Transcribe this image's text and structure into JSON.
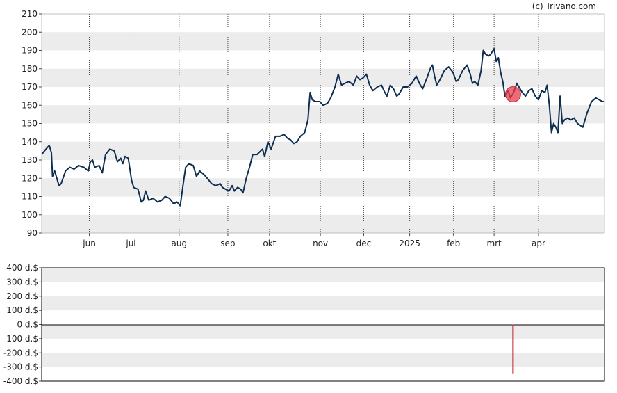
{
  "credit": "(c) Trivano.com",
  "colors": {
    "line": "#0d2e4f",
    "band": "#ececec",
    "marker": "#e8394a",
    "bar": "#c4242f"
  },
  "chart_data": [
    {
      "type": "line",
      "name": "price",
      "ylim": [
        90,
        210
      ],
      "y_ticks": [
        90,
        100,
        110,
        120,
        130,
        140,
        150,
        160,
        170,
        180,
        190,
        200,
        210
      ],
      "x_ticks": [
        {
          "label": "jun",
          "t": 0.088
        },
        {
          "label": "jul",
          "t": 0.165
        },
        {
          "label": "aug",
          "t": 0.254
        },
        {
          "label": "sep",
          "t": 0.344
        },
        {
          "label": "okt",
          "t": 0.421
        },
        {
          "label": "nov",
          "t": 0.515
        },
        {
          "label": "dec",
          "t": 0.595
        },
        {
          "label": "2025",
          "t": 0.68
        },
        {
          "label": "feb",
          "t": 0.761
        },
        {
          "label": "mrt",
          "t": 0.836
        },
        {
          "label": "apr",
          "t": 0.918
        }
      ],
      "grid": "horizontal bands, dotted vertical lines at month ticks",
      "series": [
        {
          "values": [
            [
              0.0,
              133
            ],
            [
              0.008,
              136
            ],
            [
              0.014,
              138
            ],
            [
              0.018,
              134
            ],
            [
              0.02,
              121
            ],
            [
              0.024,
              124
            ],
            [
              0.032,
              116
            ],
            [
              0.036,
              117
            ],
            [
              0.044,
              124
            ],
            [
              0.052,
              126
            ],
            [
              0.06,
              125
            ],
            [
              0.068,
              127
            ],
            [
              0.078,
              126
            ],
            [
              0.086,
              124
            ],
            [
              0.09,
              129
            ],
            [
              0.094,
              130
            ],
            [
              0.098,
              126
            ],
            [
              0.106,
              127
            ],
            [
              0.112,
              123
            ],
            [
              0.118,
              133
            ],
            [
              0.126,
              136
            ],
            [
              0.134,
              135
            ],
            [
              0.14,
              129
            ],
            [
              0.146,
              131
            ],
            [
              0.15,
              128
            ],
            [
              0.154,
              132
            ],
            [
              0.16,
              131
            ],
            [
              0.166,
              119
            ],
            [
              0.17,
              115
            ],
            [
              0.178,
              114
            ],
            [
              0.184,
              107
            ],
            [
              0.188,
              108
            ],
            [
              0.192,
              113
            ],
            [
              0.198,
              108
            ],
            [
              0.206,
              109
            ],
            [
              0.214,
              107
            ],
            [
              0.222,
              108
            ],
            [
              0.228,
              110
            ],
            [
              0.236,
              109
            ],
            [
              0.244,
              106
            ],
            [
              0.25,
              107
            ],
            [
              0.256,
              105
            ],
            [
              0.262,
              118
            ],
            [
              0.266,
              126
            ],
            [
              0.272,
              128
            ],
            [
              0.28,
              127
            ],
            [
              0.286,
              121
            ],
            [
              0.292,
              124
            ],
            [
              0.3,
              122
            ],
            [
              0.306,
              120
            ],
            [
              0.314,
              117
            ],
            [
              0.322,
              116
            ],
            [
              0.33,
              117
            ],
            [
              0.334,
              115
            ],
            [
              0.34,
              114
            ],
            [
              0.346,
              113
            ],
            [
              0.352,
              116
            ],
            [
              0.356,
              113
            ],
            [
              0.362,
              115
            ],
            [
              0.368,
              114
            ],
            [
              0.372,
              112
            ],
            [
              0.378,
              120
            ],
            [
              0.384,
              126
            ],
            [
              0.39,
              133
            ],
            [
              0.398,
              133
            ],
            [
              0.408,
              136
            ],
            [
              0.412,
              132
            ],
            [
              0.418,
              140
            ],
            [
              0.424,
              136
            ],
            [
              0.432,
              143
            ],
            [
              0.44,
              143
            ],
            [
              0.448,
              144
            ],
            [
              0.454,
              142
            ],
            [
              0.46,
              141
            ],
            [
              0.466,
              139
            ],
            [
              0.472,
              140
            ],
            [
              0.478,
              143
            ],
            [
              0.486,
              145
            ],
            [
              0.492,
              152
            ],
            [
              0.496,
              167
            ],
            [
              0.5,
              163
            ],
            [
              0.506,
              162
            ],
            [
              0.514,
              162
            ],
            [
              0.52,
              160
            ],
            [
              0.528,
              161
            ],
            [
              0.534,
              164
            ],
            [
              0.542,
              170
            ],
            [
              0.548,
              177
            ],
            [
              0.554,
              171
            ],
            [
              0.56,
              172
            ],
            [
              0.568,
              173
            ],
            [
              0.576,
              171
            ],
            [
              0.582,
              176
            ],
            [
              0.588,
              174
            ],
            [
              0.594,
              175
            ],
            [
              0.6,
              177
            ],
            [
              0.606,
              171
            ],
            [
              0.612,
              168
            ],
            [
              0.62,
              170
            ],
            [
              0.628,
              171
            ],
            [
              0.634,
              167
            ],
            [
              0.638,
              165
            ],
            [
              0.644,
              171
            ],
            [
              0.65,
              169
            ],
            [
              0.656,
              165
            ],
            [
              0.66,
              166
            ],
            [
              0.668,
              170
            ],
            [
              0.676,
              170
            ],
            [
              0.684,
              172
            ],
            [
              0.692,
              176
            ],
            [
              0.698,
              172
            ],
            [
              0.704,
              169
            ],
            [
              0.712,
              175
            ],
            [
              0.718,
              180
            ],
            [
              0.722,
              182
            ],
            [
              0.726,
              176
            ],
            [
              0.73,
              171
            ],
            [
              0.736,
              174
            ],
            [
              0.744,
              179
            ],
            [
              0.752,
              181
            ],
            [
              0.76,
              178
            ],
            [
              0.766,
              173
            ],
            [
              0.77,
              174
            ],
            [
              0.778,
              179
            ],
            [
              0.786,
              182
            ],
            [
              0.792,
              177
            ],
            [
              0.796,
              172
            ],
            [
              0.8,
              173
            ],
            [
              0.806,
              171
            ],
            [
              0.812,
              179
            ],
            [
              0.816,
              190
            ],
            [
              0.82,
              188
            ],
            [
              0.826,
              187
            ],
            [
              0.83,
              188
            ],
            [
              0.836,
              191
            ],
            [
              0.84,
              184
            ],
            [
              0.844,
              186
            ],
            [
              0.848,
              178
            ],
            [
              0.852,
              173
            ],
            [
              0.856,
              165
            ],
            [
              0.862,
              168
            ],
            [
              0.866,
              164
            ],
            [
              0.872,
              167
            ],
            [
              0.878,
              172
            ],
            [
              0.882,
              170
            ],
            [
              0.888,
              167
            ],
            [
              0.894,
              165
            ],
            [
              0.9,
              168
            ],
            [
              0.906,
              169
            ],
            [
              0.912,
              165
            ],
            [
              0.918,
              163
            ],
            [
              0.924,
              168
            ],
            [
              0.93,
              167
            ],
            [
              0.934,
              171
            ],
            [
              0.938,
              160
            ],
            [
              0.942,
              145
            ],
            [
              0.946,
              150
            ],
            [
              0.95,
              148
            ],
            [
              0.954,
              145
            ],
            [
              0.958,
              165
            ],
            [
              0.962,
              150
            ],
            [
              0.966,
              152
            ],
            [
              0.972,
              153
            ],
            [
              0.978,
              152
            ],
            [
              0.984,
              153
            ],
            [
              0.99,
              150
            ],
            [
              1.0,
              148
            ],
            [
              1.008,
              156
            ],
            [
              1.016,
              162
            ],
            [
              1.024,
              164
            ],
            [
              1.03,
              163
            ],
            [
              1.036,
              162
            ],
            [
              1.04,
              162
            ]
          ]
        }
      ],
      "markers": [
        {
          "t": 0.871,
          "value": 166,
          "label": ""
        }
      ]
    },
    {
      "type": "bar",
      "name": "transactions",
      "ylim": [
        -400,
        400
      ],
      "y_ticks": [
        "400 d.$",
        "300 d.$",
        "200 d.$",
        "100 d.$",
        "0 d.$",
        "-100 d.$",
        "-200 d.$",
        "-300 d.$",
        "-400 d.$"
      ],
      "y_tick_values": [
        400,
        300,
        200,
        100,
        0,
        -100,
        -200,
        -300,
        -400
      ],
      "values": [
        {
          "t": 0.871,
          "value": -345
        }
      ]
    }
  ]
}
